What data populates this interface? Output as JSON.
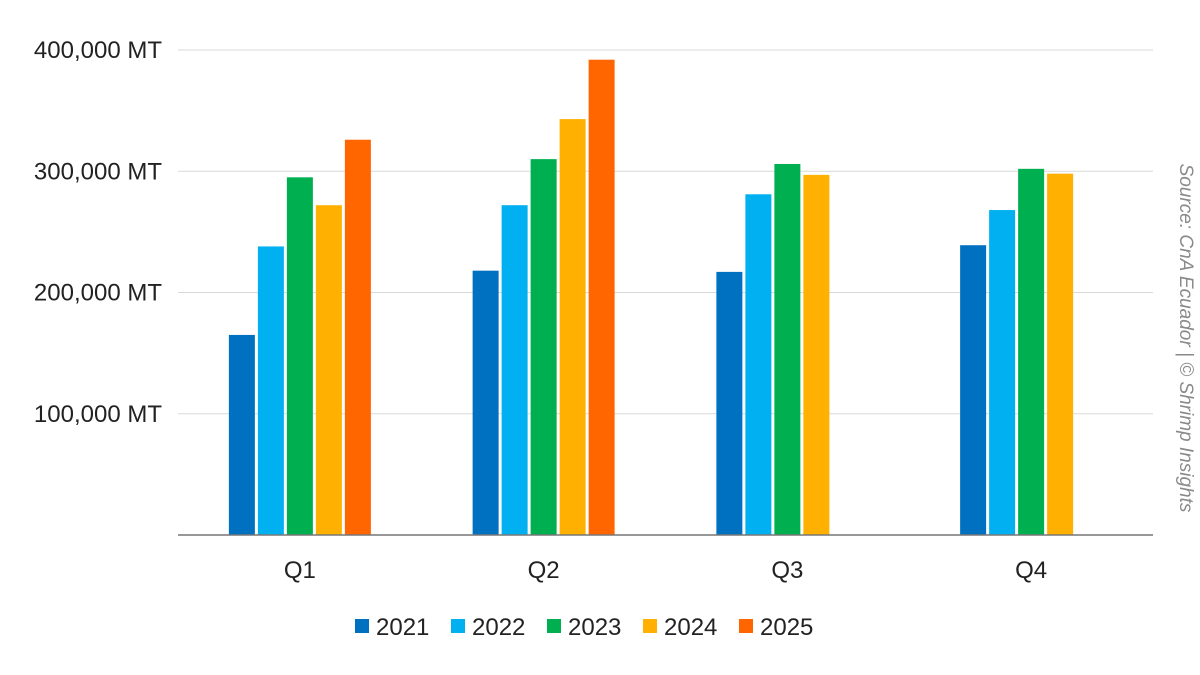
{
  "chart_data": {
    "type": "bar",
    "categories": [
      "Q1",
      "Q2",
      "Q3",
      "Q4"
    ],
    "series": [
      {
        "name": "2021",
        "color": "#0070c0",
        "values": [
          165000,
          218000,
          217000,
          239000
        ]
      },
      {
        "name": "2022",
        "color": "#00b0f0",
        "values": [
          238000,
          272000,
          281000,
          268000
        ]
      },
      {
        "name": "2023",
        "color": "#00b050",
        "values": [
          295000,
          310000,
          306000,
          302000
        ]
      },
      {
        "name": "2024",
        "color": "#ffb000",
        "values": [
          272000,
          343000,
          297000,
          298000
        ]
      },
      {
        "name": "2025",
        "color": "#ff6600",
        "values": [
          326000,
          392000,
          null,
          null
        ]
      }
    ],
    "y_ticks": [
      {
        "value": 100000,
        "label": "100,000 MT"
      },
      {
        "value": 200000,
        "label": "200,000 MT"
      },
      {
        "value": 300000,
        "label": "300,000 MT"
      },
      {
        "value": 400000,
        "label": "400,000 MT"
      }
    ],
    "ylim": [
      0,
      400000
    ],
    "grid": true,
    "legend_position": "bottom",
    "source": "Source: CnA Ecuador | © Shrimp Insights"
  }
}
